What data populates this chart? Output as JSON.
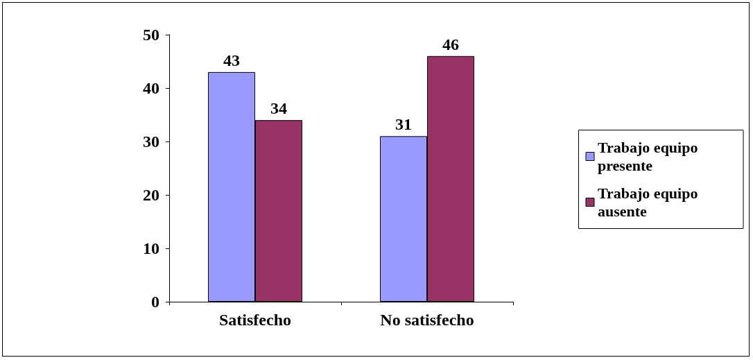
{
  "chart_data": {
    "type": "bar",
    "categories": [
      "Satisfecho",
      "No satisfecho"
    ],
    "series": [
      {
        "name": "Trabajo equipo presente",
        "color": "#9999ff",
        "values": [
          43,
          31
        ]
      },
      {
        "name": "Trabajo equipo ausente",
        "color": "#993366",
        "values": [
          34,
          46
        ]
      }
    ],
    "ylim": [
      0,
      50
    ],
    "yticks": [
      0,
      10,
      20,
      30,
      40,
      50
    ],
    "data_labels": true,
    "legend": "right",
    "grid": false
  }
}
